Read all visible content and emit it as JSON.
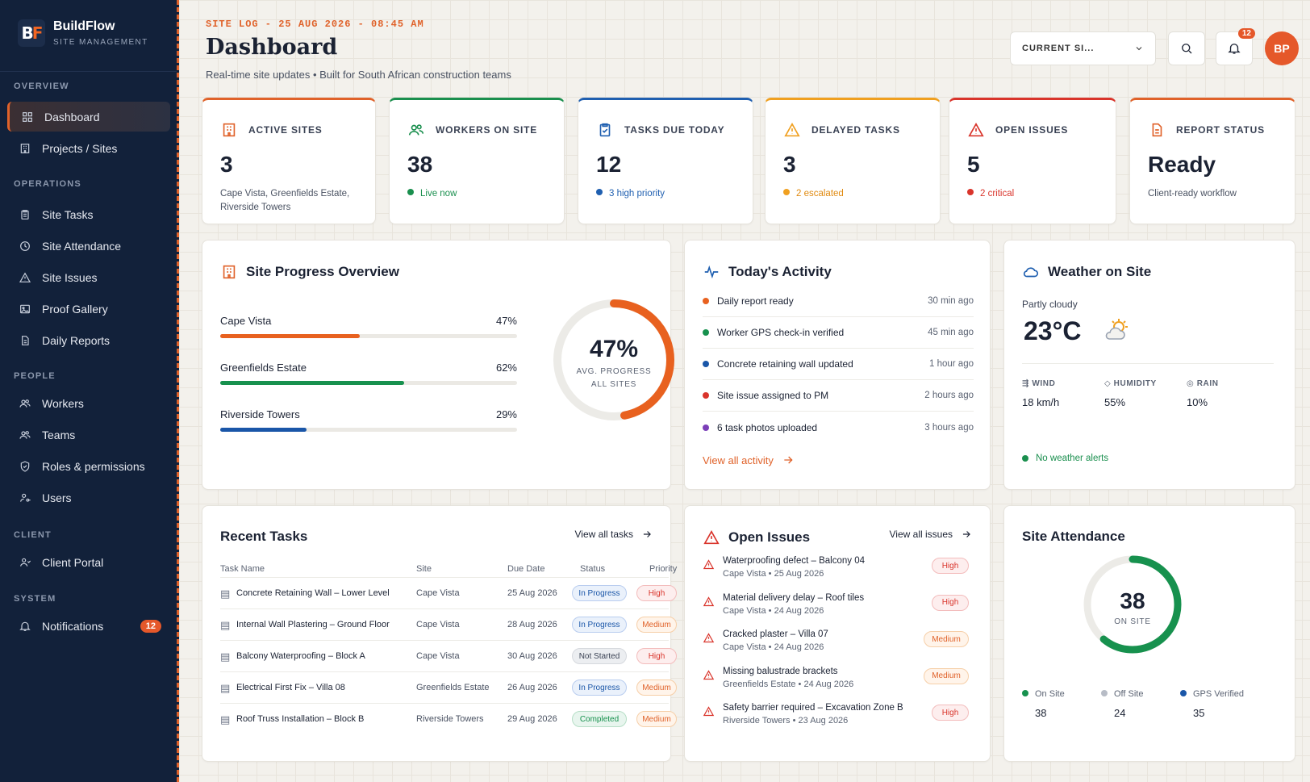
{
  "brand": {
    "name": "BuildFlow",
    "sub": "SITE MANAGEMENT",
    "logo": "BF"
  },
  "sidebar": {
    "sections": [
      {
        "label": "OVERVIEW",
        "items": [
          {
            "label": "Dashboard",
            "icon": "grid-icon",
            "active": true
          },
          {
            "label": "Projects / Sites",
            "icon": "building-icon"
          }
        ]
      },
      {
        "label": "OPERATIONS",
        "items": [
          {
            "label": "Site Tasks",
            "icon": "clipboard-icon"
          },
          {
            "label": "Site Attendance",
            "icon": "clock-icon"
          },
          {
            "label": "Site Issues",
            "icon": "warning-icon"
          },
          {
            "label": "Proof Gallery",
            "icon": "image-icon"
          },
          {
            "label": "Daily Reports",
            "icon": "document-icon"
          }
        ]
      },
      {
        "label": "PEOPLE",
        "items": [
          {
            "label": "Workers",
            "icon": "users-icon"
          },
          {
            "label": "Teams",
            "icon": "team-icon"
          },
          {
            "label": "Roles & permissions",
            "icon": "shield-icon"
          },
          {
            "label": "Users",
            "icon": "user-key-icon"
          }
        ]
      },
      {
        "label": "CLIENT",
        "items": [
          {
            "label": "Client Portal",
            "icon": "client-icon"
          }
        ]
      },
      {
        "label": "SYSTEM",
        "items": [
          {
            "label": "Notifications",
            "icon": "bell-icon",
            "badge": "12"
          }
        ]
      }
    ]
  },
  "header": {
    "site_log": "SITE LOG - 25 AUG 2026 - 08:45 AM",
    "title": "Dashboard",
    "subtitle": "Real-time site updates • Built for South African construction teams",
    "site_select": "CURRENT SI...",
    "notification_count": "12",
    "avatar": "BP"
  },
  "kpis": [
    {
      "label": "ACTIVE SITES",
      "value": "3",
      "note": "Cape Vista, Greenfields Estate, Riverside Towers",
      "color": "#e0622a",
      "icon": "building-icon"
    },
    {
      "label": "WORKERS ON SITE",
      "value": "38",
      "note": "Live now",
      "color": "#1a8f4e",
      "icon": "users-icon"
    },
    {
      "label": "TASKS DUE TODAY",
      "value": "12",
      "note": "3 high priority",
      "color": "#1f5fb0",
      "icon": "clipboard-check-icon"
    },
    {
      "label": "DELAYED TASKS",
      "value": "3",
      "note": "2 escalated",
      "color": "#f0a020",
      "icon": "warning-icon"
    },
    {
      "label": "OPEN ISSUES",
      "value": "5",
      "note": "2 critical",
      "color": "#d9342b",
      "icon": "alert-icon"
    },
    {
      "label": "REPORT STATUS",
      "value": "Ready",
      "note": "Client-ready workflow",
      "color": "#e0622a",
      "icon": "report-icon"
    }
  ],
  "progress": {
    "title": "Site Progress Overview",
    "sites": [
      {
        "name": "Cape Vista",
        "pct_label": "47%",
        "pct": 47,
        "color": "#e8611f"
      },
      {
        "name": "Greenfields Estate",
        "pct_label": "62%",
        "pct": 62,
        "color": "#17914e"
      },
      {
        "name": "Riverside Towers",
        "pct_label": "29%",
        "pct": 29,
        "color": "#1a56a8"
      }
    ],
    "ring_value": "47%",
    "ring_pct": 47,
    "ring_label1": "AVG. PROGRESS",
    "ring_label2": "ALL SITES"
  },
  "activity": {
    "title": "Today's Activity",
    "items": [
      {
        "text": "Daily report ready",
        "time": "30 min ago",
        "color": "#e8611f"
      },
      {
        "text": "Worker GPS check-in verified",
        "time": "45 min ago",
        "color": "#17914e"
      },
      {
        "text": "Concrete retaining wall updated",
        "time": "1 hour ago",
        "color": "#1a56a8"
      },
      {
        "text": "Site issue assigned to PM",
        "time": "2 hours ago",
        "color": "#d9342b"
      },
      {
        "text": "6 task photos uploaded",
        "time": "3 hours ago",
        "color": "#7b3fb8"
      }
    ],
    "view_all": "View all activity"
  },
  "weather": {
    "title": "Weather on Site",
    "condition": "Partly cloudy",
    "temp": "23°C",
    "wind_label": "WIND",
    "wind": "18  km/h",
    "humidity_label": "HUMIDITY",
    "humidity": "55%",
    "rain_label": "RAIN",
    "rain": "10%",
    "alert": "No weather alerts"
  },
  "tasks": {
    "title": "Recent Tasks",
    "view_all": "View all tasks",
    "columns": [
      "Task Name",
      "Site",
      "Due Date",
      "Status",
      "Priority"
    ],
    "rows": [
      {
        "name": "Concrete Retaining Wall – Lower Level",
        "site": "Cape Vista",
        "due": "25 Aug 2026",
        "status": "In Progress",
        "priority": "High"
      },
      {
        "name": "Internal Wall Plastering – Ground Floor",
        "site": "Cape Vista",
        "due": "28 Aug 2026",
        "status": "In Progress",
        "priority": "Medium"
      },
      {
        "name": "Balcony Waterproofing – Block A",
        "site": "Cape Vista",
        "due": "30 Aug 2026",
        "status": "Not Started",
        "priority": "High"
      },
      {
        "name": "Electrical First Fix – Villa 08",
        "site": "Greenfields Estate",
        "due": "26 Aug 2026",
        "status": "In Progress",
        "priority": "Medium"
      },
      {
        "name": "Roof Truss Installation – Block B",
        "site": "Riverside Towers",
        "due": "29 Aug 2026",
        "status": "Completed",
        "priority": "Medium"
      }
    ]
  },
  "issues": {
    "title": "Open Issues",
    "view_all": "View all issues",
    "items": [
      {
        "title": "Waterproofing defect – Balcony 04",
        "meta": "Cape Vista  •  25 Aug 2026",
        "priority": "High"
      },
      {
        "title": "Material delivery delay – Roof tiles",
        "meta": "Cape Vista  •  24 Aug 2026",
        "priority": "High"
      },
      {
        "title": "Cracked plaster – Villa 07",
        "meta": "Cape Vista  •  24 Aug 2026",
        "priority": "Medium"
      },
      {
        "title": "Missing balustrade brackets",
        "meta": "Greenfields Estate  •  24 Aug 2026",
        "priority": "Medium"
      },
      {
        "title": "Safety barrier required – Excavation Zone B",
        "meta": "Riverside Towers  •  23 Aug 2026",
        "priority": "High"
      }
    ]
  },
  "attendance": {
    "title": "Site Attendance",
    "value": "38",
    "label": "ON SITE",
    "ring_fraction": 0.61,
    "legend": [
      {
        "label": "On Site",
        "value": "38",
        "color": "#17914e"
      },
      {
        "label": "Off Site",
        "value": "24",
        "color": "#b7bcc6"
      },
      {
        "label": "GPS Verified",
        "value": "35",
        "color": "#1a56a8"
      }
    ]
  }
}
